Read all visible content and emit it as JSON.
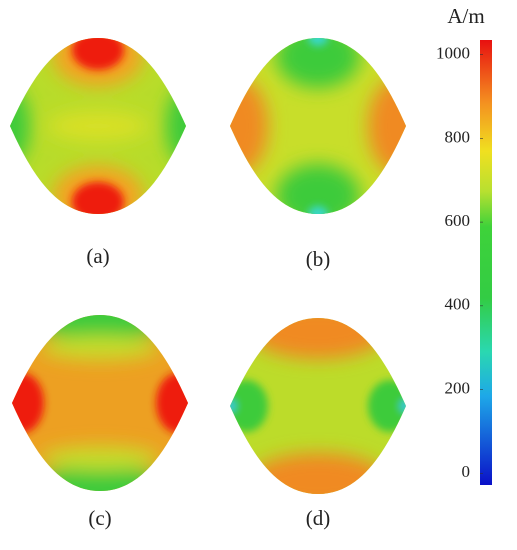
{
  "panels": [
    {
      "label": "(a)"
    },
    {
      "label": "(b)"
    },
    {
      "label": "(c)"
    },
    {
      "label": "(d)"
    }
  ],
  "colorbar": {
    "unit": "A/m",
    "lim": [
      -28,
      1035
    ],
    "ticks": [
      0,
      200,
      400,
      600,
      800,
      1000
    ]
  }
}
